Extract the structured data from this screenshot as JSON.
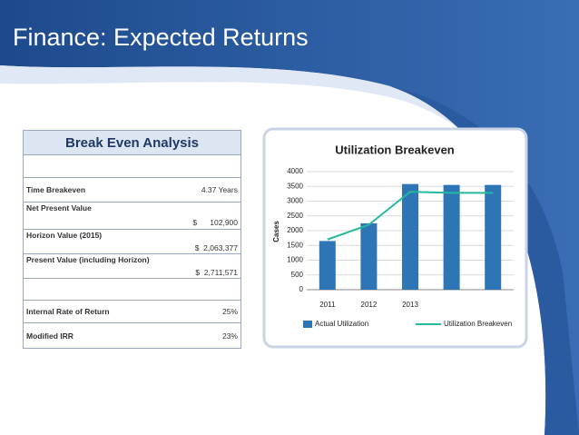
{
  "title": "Finance: Expected Returns",
  "table": {
    "title": "Break Even Analysis",
    "rows": [
      [
        "Time Breakeven",
        "4.37 Years"
      ],
      [
        "Net Present Value",
        "$      102,900"
      ],
      [
        "Horizon Value (2015)",
        "$  2,063,377"
      ],
      [
        "Present Value (including Horizon)",
        "$  2,711,571"
      ],
      [
        "Internal Rate of Return",
        "25%"
      ],
      [
        "Modified IRR",
        "23%"
      ]
    ]
  },
  "chart_data": {
    "type": "bar",
    "title": "Utilization Breakeven",
    "y_label": "Cases",
    "categories": [
      "2011",
      "2012",
      "2013",
      null,
      null
    ],
    "series": [
      {
        "name": "Actual Utilization",
        "type": "bar",
        "color": "#2e75b6",
        "values": [
          1650,
          2250,
          3580,
          3550,
          3550
        ]
      },
      {
        "name": "Utilization Breakeven",
        "type": "line",
        "color": "#26b89f",
        "values": [
          1700,
          2200,
          3320,
          3280,
          3280
        ]
      }
    ],
    "ylim": [
      0,
      4000
    ],
    "yticks": [
      0,
      500,
      1000,
      1500,
      2000,
      2500,
      3000,
      3500,
      4000
    ],
    "grid": true,
    "legend": "bottom"
  }
}
